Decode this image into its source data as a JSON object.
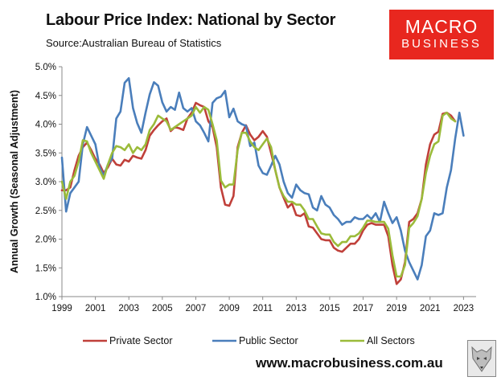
{
  "header": {
    "title": "Labour Price Index: National by Sector",
    "source": "Source:Australian Bureau of Statistics"
  },
  "logo": {
    "line1": "MACRO",
    "line2": "BUSINESS"
  },
  "footer": {
    "website": "www.macrobusiness.com.au"
  },
  "colors": {
    "private": "#c0403a",
    "public": "#4a7ebb",
    "all": "#9bbb3a"
  },
  "chart_data": {
    "type": "line",
    "title": "Labour Price Index: National by Sector",
    "ylabel": "Annual Growth (Seasonal Adjustment)",
    "xlabel": "",
    "xlim": [
      1999,
      2023.75
    ],
    "ylim": [
      1.0,
      5.0
    ],
    "x_ticks": [
      1999,
      2001,
      2003,
      2005,
      2007,
      2009,
      2011,
      2013,
      2015,
      2017,
      2019,
      2021,
      2023
    ],
    "x_tick_labels": [
      "1999",
      "2001",
      "2003",
      "2005",
      "2007",
      "2009",
      "2011",
      "2013",
      "2015",
      "2017",
      "2019",
      "2021",
      "2023"
    ],
    "y_ticks": [
      1.0,
      1.5,
      2.0,
      2.5,
      3.0,
      3.5,
      4.0,
      4.5,
      5.0
    ],
    "y_tick_labels": [
      "1.0%",
      "1.5%",
      "2.0%",
      "2.5%",
      "3.0%",
      "3.5%",
      "4.0%",
      "4.5%",
      "5.0%"
    ],
    "legend_position": "bottom",
    "series": [
      {
        "name": "Private Sector",
        "key": "private",
        "points": [
          [
            1999,
            2.85
          ],
          [
            1999.25,
            2.85
          ],
          [
            1999.5,
            2.9
          ],
          [
            1999.75,
            3.2
          ],
          [
            2000,
            3.45
          ],
          [
            2000.25,
            3.6
          ],
          [
            2000.5,
            3.68
          ],
          [
            2000.75,
            3.55
          ],
          [
            2001,
            3.4
          ],
          [
            2001.25,
            3.3
          ],
          [
            2001.5,
            3.15
          ],
          [
            2001.75,
            3.25
          ],
          [
            2002,
            3.4
          ],
          [
            2002.25,
            3.3
          ],
          [
            2002.5,
            3.28
          ],
          [
            2002.75,
            3.38
          ],
          [
            2003,
            3.35
          ],
          [
            2003.25,
            3.45
          ],
          [
            2003.5,
            3.42
          ],
          [
            2003.75,
            3.4
          ],
          [
            2004,
            3.55
          ],
          [
            2004.25,
            3.8
          ],
          [
            2004.5,
            3.9
          ],
          [
            2004.75,
            3.98
          ],
          [
            2005,
            4.05
          ],
          [
            2005.25,
            4.1
          ],
          [
            2005.5,
            3.88
          ],
          [
            2005.75,
            3.95
          ],
          [
            2006,
            3.93
          ],
          [
            2006.25,
            3.9
          ],
          [
            2006.5,
            4.1
          ],
          [
            2006.75,
            4.2
          ],
          [
            2007,
            4.37
          ],
          [
            2007.25,
            4.33
          ],
          [
            2007.5,
            4.3
          ],
          [
            2007.75,
            4.05
          ],
          [
            2008,
            3.95
          ],
          [
            2008.25,
            3.6
          ],
          [
            2008.5,
            2.9
          ],
          [
            2008.75,
            2.6
          ],
          [
            2009,
            2.58
          ],
          [
            2009.25,
            2.75
          ],
          [
            2009.5,
            3.6
          ],
          [
            2009.75,
            3.85
          ],
          [
            2010,
            3.98
          ],
          [
            2010.25,
            3.82
          ],
          [
            2010.5,
            3.72
          ],
          [
            2010.75,
            3.78
          ],
          [
            2011,
            3.88
          ],
          [
            2011.25,
            3.78
          ],
          [
            2011.5,
            3.5
          ],
          [
            2011.75,
            3.2
          ],
          [
            2012,
            2.9
          ],
          [
            2012.25,
            2.72
          ],
          [
            2012.5,
            2.55
          ],
          [
            2012.75,
            2.62
          ],
          [
            2013,
            2.42
          ],
          [
            2013.25,
            2.4
          ],
          [
            2013.5,
            2.45
          ],
          [
            2013.75,
            2.22
          ],
          [
            2014,
            2.2
          ],
          [
            2014.25,
            2.1
          ],
          [
            2014.5,
            2.0
          ],
          [
            2014.75,
            1.98
          ],
          [
            2015,
            1.98
          ],
          [
            2015.25,
            1.85
          ],
          [
            2015.5,
            1.8
          ],
          [
            2015.75,
            1.78
          ],
          [
            2016,
            1.85
          ],
          [
            2016.25,
            1.92
          ],
          [
            2016.5,
            1.92
          ],
          [
            2016.75,
            2.0
          ],
          [
            2017,
            2.15
          ],
          [
            2017.25,
            2.25
          ],
          [
            2017.5,
            2.28
          ],
          [
            2017.75,
            2.25
          ],
          [
            2018,
            2.25
          ],
          [
            2018.25,
            2.25
          ],
          [
            2018.5,
            2.05
          ],
          [
            2018.75,
            1.55
          ],
          [
            2019,
            1.22
          ],
          [
            2019.25,
            1.3
          ],
          [
            2019.5,
            1.6
          ],
          [
            2019.75,
            2.3
          ],
          [
            2020,
            2.35
          ],
          [
            2020.25,
            2.45
          ],
          [
            2020.5,
            2.7
          ],
          [
            2020.75,
            3.3
          ],
          [
            2021,
            3.65
          ],
          [
            2021.25,
            3.82
          ],
          [
            2021.5,
            3.87
          ],
          [
            2021.75,
            4.18
          ],
          [
            2022,
            4.2
          ],
          [
            2022.25,
            4.15
          ],
          [
            2022.5,
            4.05
          ]
        ]
      },
      {
        "name": "Public Sector",
        "key": "public",
        "points": [
          [
            1999,
            3.42
          ],
          [
            1999.25,
            2.48
          ],
          [
            1999.5,
            2.8
          ],
          [
            1999.75,
            2.9
          ],
          [
            2000,
            3.0
          ],
          [
            2000.25,
            3.65
          ],
          [
            2000.5,
            3.95
          ],
          [
            2000.75,
            3.8
          ],
          [
            2001,
            3.65
          ],
          [
            2001.25,
            3.25
          ],
          [
            2001.5,
            3.1
          ],
          [
            2001.75,
            3.3
          ],
          [
            2002,
            3.4
          ],
          [
            2002.25,
            4.1
          ],
          [
            2002.5,
            4.22
          ],
          [
            2002.75,
            4.72
          ],
          [
            2003,
            4.8
          ],
          [
            2003.25,
            4.28
          ],
          [
            2003.5,
            4.02
          ],
          [
            2003.75,
            3.85
          ],
          [
            2004,
            4.2
          ],
          [
            2004.25,
            4.52
          ],
          [
            2004.5,
            4.73
          ],
          [
            2004.75,
            4.67
          ],
          [
            2005,
            4.38
          ],
          [
            2005.25,
            4.22
          ],
          [
            2005.5,
            4.3
          ],
          [
            2005.75,
            4.25
          ],
          [
            2006,
            4.55
          ],
          [
            2006.25,
            4.28
          ],
          [
            2006.5,
            4.22
          ],
          [
            2006.75,
            4.28
          ],
          [
            2007,
            4.05
          ],
          [
            2007.25,
            3.98
          ],
          [
            2007.5,
            3.85
          ],
          [
            2007.75,
            3.7
          ],
          [
            2008,
            4.37
          ],
          [
            2008.25,
            4.45
          ],
          [
            2008.5,
            4.48
          ],
          [
            2008.75,
            4.58
          ],
          [
            2009,
            4.12
          ],
          [
            2009.25,
            4.27
          ],
          [
            2009.5,
            4.05
          ],
          [
            2009.75,
            4.0
          ],
          [
            2010,
            3.97
          ],
          [
            2010.25,
            3.62
          ],
          [
            2010.5,
            3.68
          ],
          [
            2010.75,
            3.28
          ],
          [
            2011,
            3.15
          ],
          [
            2011.25,
            3.12
          ],
          [
            2011.5,
            3.28
          ],
          [
            2011.75,
            3.45
          ],
          [
            2012,
            3.3
          ],
          [
            2012.25,
            3.0
          ],
          [
            2012.5,
            2.8
          ],
          [
            2012.75,
            2.72
          ],
          [
            2013,
            2.95
          ],
          [
            2013.25,
            2.85
          ],
          [
            2013.5,
            2.8
          ],
          [
            2013.75,
            2.78
          ],
          [
            2014,
            2.55
          ],
          [
            2014.25,
            2.5
          ],
          [
            2014.5,
            2.75
          ],
          [
            2014.75,
            2.6
          ],
          [
            2015,
            2.55
          ],
          [
            2015.25,
            2.42
          ],
          [
            2015.5,
            2.35
          ],
          [
            2015.75,
            2.25
          ],
          [
            2016,
            2.3
          ],
          [
            2016.25,
            2.3
          ],
          [
            2016.5,
            2.38
          ],
          [
            2016.75,
            2.35
          ],
          [
            2017,
            2.35
          ],
          [
            2017.25,
            2.42
          ],
          [
            2017.5,
            2.35
          ],
          [
            2017.75,
            2.45
          ],
          [
            2018,
            2.3
          ],
          [
            2018.25,
            2.65
          ],
          [
            2018.5,
            2.45
          ],
          [
            2018.75,
            2.28
          ],
          [
            2019,
            2.38
          ],
          [
            2019.25,
            2.15
          ],
          [
            2019.5,
            1.8
          ],
          [
            2019.75,
            1.6
          ],
          [
            2020,
            1.45
          ],
          [
            2020.25,
            1.3
          ],
          [
            2020.5,
            1.55
          ],
          [
            2020.75,
            2.05
          ],
          [
            2021,
            2.15
          ],
          [
            2021.25,
            2.45
          ],
          [
            2021.5,
            2.42
          ],
          [
            2021.75,
            2.45
          ],
          [
            2022,
            2.9
          ],
          [
            2022.25,
            3.2
          ],
          [
            2022.5,
            3.75
          ],
          [
            2022.75,
            4.2
          ],
          [
            2023,
            3.8
          ]
        ]
      },
      {
        "name": "All Sectors",
        "key": "all",
        "points": [
          [
            1999,
            3.0
          ],
          [
            1999.25,
            2.7
          ],
          [
            1999.5,
            3.0
          ],
          [
            1999.75,
            3.1
          ],
          [
            2000,
            3.35
          ],
          [
            2000.25,
            3.72
          ],
          [
            2000.5,
            3.7
          ],
          [
            2000.75,
            3.5
          ],
          [
            2001,
            3.35
          ],
          [
            2001.25,
            3.2
          ],
          [
            2001.5,
            3.05
          ],
          [
            2001.75,
            3.3
          ],
          [
            2002,
            3.5
          ],
          [
            2002.25,
            3.62
          ],
          [
            2002.5,
            3.6
          ],
          [
            2002.75,
            3.55
          ],
          [
            2003,
            3.65
          ],
          [
            2003.25,
            3.5
          ],
          [
            2003.5,
            3.6
          ],
          [
            2003.75,
            3.55
          ],
          [
            2004,
            3.65
          ],
          [
            2004.25,
            3.9
          ],
          [
            2004.5,
            4.0
          ],
          [
            2004.75,
            4.15
          ],
          [
            2005,
            4.1
          ],
          [
            2005.25,
            4.05
          ],
          [
            2005.5,
            3.9
          ],
          [
            2005.75,
            3.95
          ],
          [
            2006,
            4.0
          ],
          [
            2006.25,
            4.05
          ],
          [
            2006.5,
            4.1
          ],
          [
            2006.75,
            4.15
          ],
          [
            2007,
            4.3
          ],
          [
            2007.25,
            4.2
          ],
          [
            2007.5,
            4.3
          ],
          [
            2007.75,
            4.25
          ],
          [
            2008,
            4.0
          ],
          [
            2008.25,
            3.72
          ],
          [
            2008.5,
            3.02
          ],
          [
            2008.75,
            2.9
          ],
          [
            2009,
            2.95
          ],
          [
            2009.25,
            2.95
          ],
          [
            2009.5,
            3.55
          ],
          [
            2009.75,
            3.85
          ],
          [
            2010,
            3.85
          ],
          [
            2010.25,
            3.7
          ],
          [
            2010.5,
            3.6
          ],
          [
            2010.75,
            3.55
          ],
          [
            2011,
            3.65
          ],
          [
            2011.25,
            3.75
          ],
          [
            2011.5,
            3.6
          ],
          [
            2011.75,
            3.2
          ],
          [
            2012,
            2.9
          ],
          [
            2012.25,
            2.75
          ],
          [
            2012.5,
            2.65
          ],
          [
            2012.75,
            2.65
          ],
          [
            2013,
            2.6
          ],
          [
            2013.25,
            2.6
          ],
          [
            2013.5,
            2.5
          ],
          [
            2013.75,
            2.35
          ],
          [
            2014,
            2.35
          ],
          [
            2014.25,
            2.22
          ],
          [
            2014.5,
            2.1
          ],
          [
            2014.75,
            2.08
          ],
          [
            2015,
            2.08
          ],
          [
            2015.25,
            1.95
          ],
          [
            2015.5,
            1.88
          ],
          [
            2015.75,
            1.95
          ],
          [
            2016,
            1.95
          ],
          [
            2016.25,
            2.05
          ],
          [
            2016.5,
            2.05
          ],
          [
            2016.75,
            2.1
          ],
          [
            2017,
            2.2
          ],
          [
            2017.25,
            2.32
          ],
          [
            2017.5,
            2.32
          ],
          [
            2017.75,
            2.3
          ],
          [
            2018,
            2.3
          ],
          [
            2018.25,
            2.3
          ],
          [
            2018.5,
            2.18
          ],
          [
            2018.75,
            1.72
          ],
          [
            2019,
            1.35
          ],
          [
            2019.25,
            1.35
          ],
          [
            2019.5,
            1.55
          ],
          [
            2019.75,
            2.2
          ],
          [
            2020,
            2.28
          ],
          [
            2020.25,
            2.4
          ],
          [
            2020.5,
            2.7
          ],
          [
            2020.75,
            3.15
          ],
          [
            2021,
            3.45
          ],
          [
            2021.25,
            3.65
          ],
          [
            2021.5,
            3.7
          ],
          [
            2021.75,
            4.15
          ],
          [
            2022,
            4.2
          ],
          [
            2022.25,
            4.1
          ],
          [
            2022.5,
            4.05
          ]
        ]
      }
    ]
  }
}
